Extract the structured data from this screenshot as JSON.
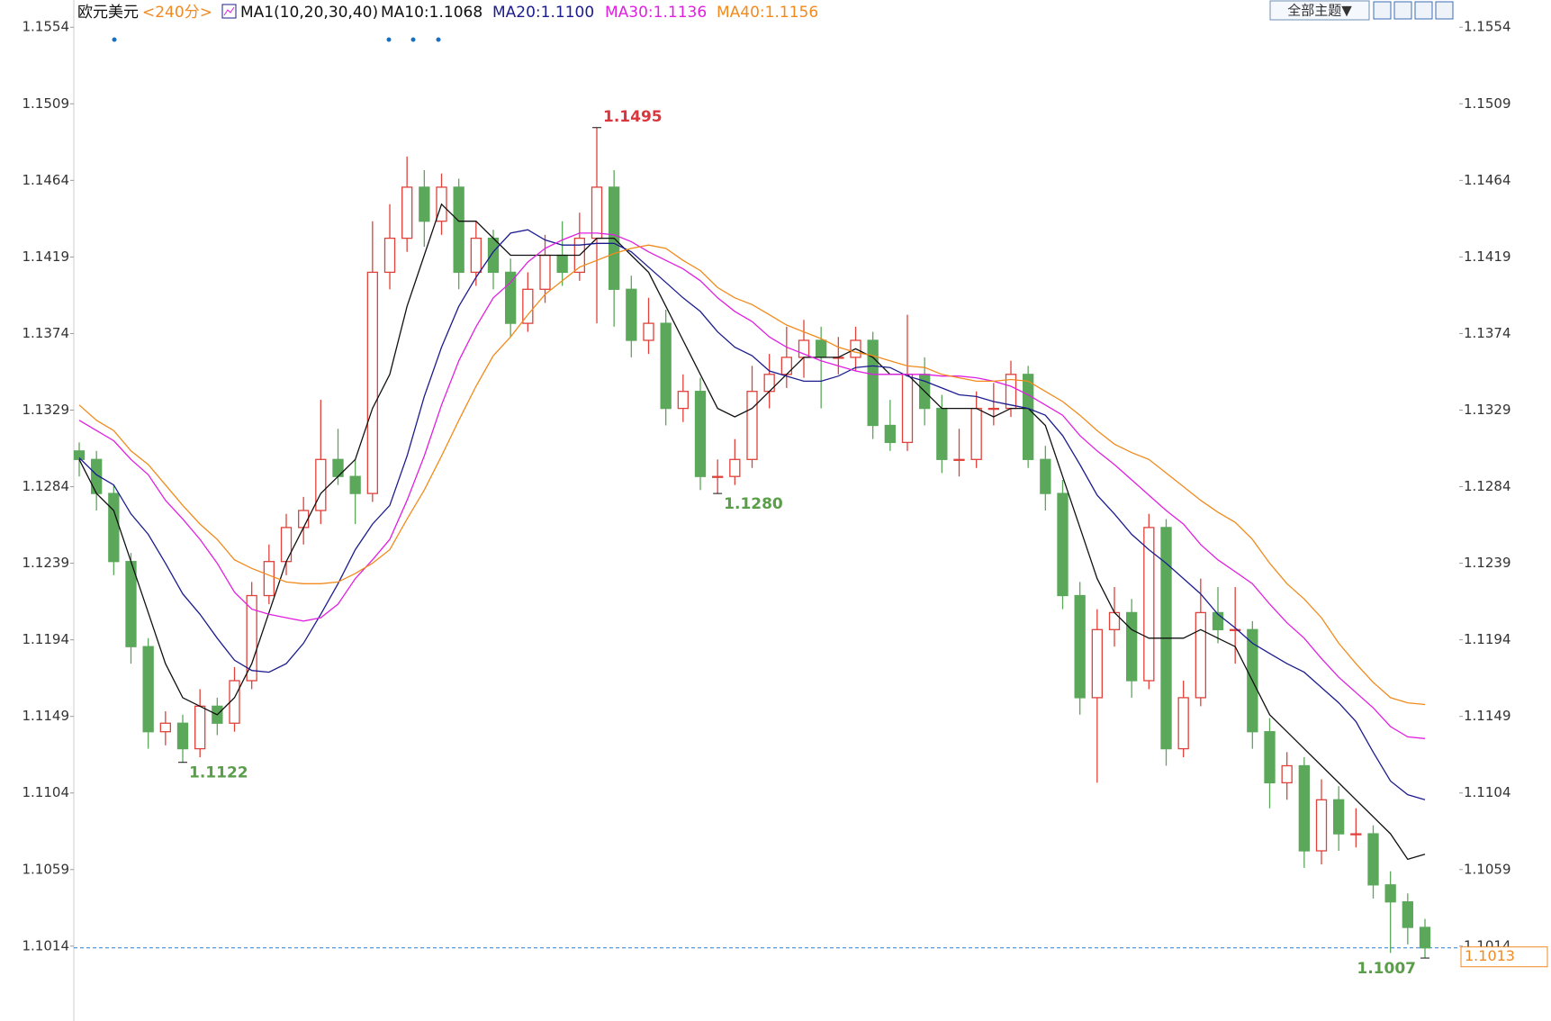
{
  "chart_data": {
    "type": "candlestick",
    "title": "欧元美元",
    "period": "<240分>",
    "indicator": "MA1(10,20,30,40)",
    "up_color": "#e0413a",
    "down_color": "#5ba85a",
    "ylim": [
      1.097,
      1.157
    ],
    "yticks": [
      1.1014,
      1.1059,
      1.1104,
      1.1149,
      1.1194,
      1.1239,
      1.1284,
      1.1329,
      1.1374,
      1.1419,
      1.1464,
      1.1509,
      1.1554
    ],
    "candles": [
      [
        1.1305,
        1.131,
        1.129,
        1.13
      ],
      [
        1.13,
        1.1305,
        1.127,
        1.128
      ],
      [
        1.128,
        1.1285,
        1.1232,
        1.124
      ],
      [
        1.124,
        1.1245,
        1.118,
        1.119
      ],
      [
        1.119,
        1.1195,
        1.113,
        1.114
      ],
      [
        1.114,
        1.1152,
        1.1132,
        1.1145
      ],
      [
        1.1145,
        1.115,
        1.1122,
        1.113
      ],
      [
        1.113,
        1.1165,
        1.1125,
        1.1155
      ],
      [
        1.1155,
        1.116,
        1.1138,
        1.1145
      ],
      [
        1.1145,
        1.1178,
        1.114,
        1.117
      ],
      [
        1.117,
        1.1228,
        1.1165,
        1.122
      ],
      [
        1.122,
        1.125,
        1.1215,
        1.124
      ],
      [
        1.124,
        1.1268,
        1.1232,
        1.126
      ],
      [
        1.126,
        1.1278,
        1.125,
        1.127
      ],
      [
        1.127,
        1.1335,
        1.1262,
        1.13
      ],
      [
        1.13,
        1.1318,
        1.1285,
        1.129
      ],
      [
        1.129,
        1.13,
        1.1262,
        1.128
      ],
      [
        1.128,
        1.144,
        1.1275,
        1.141
      ],
      [
        1.141,
        1.145,
        1.14,
        1.143
      ],
      [
        1.143,
        1.1478,
        1.1422,
        1.146
      ],
      [
        1.146,
        1.147,
        1.1425,
        1.144
      ],
      [
        1.144,
        1.1468,
        1.1432,
        1.146
      ],
      [
        1.146,
        1.1465,
        1.14,
        1.141
      ],
      [
        1.141,
        1.144,
        1.1402,
        1.143
      ],
      [
        1.143,
        1.1435,
        1.14,
        1.141
      ],
      [
        1.141,
        1.1418,
        1.1372,
        1.138
      ],
      [
        1.138,
        1.141,
        1.1375,
        1.14
      ],
      [
        1.14,
        1.1432,
        1.1392,
        1.142
      ],
      [
        1.142,
        1.144,
        1.1402,
        1.141
      ],
      [
        1.141,
        1.1445,
        1.1405,
        1.143
      ],
      [
        1.143,
        1.1495,
        1.138,
        1.146
      ],
      [
        1.146,
        1.147,
        1.1378,
        1.14
      ],
      [
        1.14,
        1.1408,
        1.136,
        1.137
      ],
      [
        1.137,
        1.1395,
        1.1362,
        1.138
      ],
      [
        1.138,
        1.1388,
        1.132,
        1.133
      ],
      [
        1.133,
        1.135,
        1.1322,
        1.134
      ],
      [
        1.134,
        1.1348,
        1.1282,
        1.129
      ],
      [
        1.129,
        1.13,
        1.128,
        1.129
      ],
      [
        1.129,
        1.1312,
        1.1285,
        1.13
      ],
      [
        1.13,
        1.1355,
        1.1295,
        1.134
      ],
      [
        1.134,
        1.1362,
        1.133,
        1.135
      ],
      [
        1.135,
        1.1378,
        1.1342,
        1.136
      ],
      [
        1.136,
        1.1382,
        1.1348,
        1.137
      ],
      [
        1.137,
        1.1378,
        1.133,
        1.136
      ],
      [
        1.136,
        1.1372,
        1.135,
        1.136
      ],
      [
        1.136,
        1.1378,
        1.1352,
        1.137
      ],
      [
        1.137,
        1.1375,
        1.1312,
        1.132
      ],
      [
        1.132,
        1.1335,
        1.1305,
        1.131
      ],
      [
        1.131,
        1.1385,
        1.1305,
        1.135
      ],
      [
        1.135,
        1.136,
        1.132,
        1.133
      ],
      [
        1.133,
        1.1338,
        1.1292,
        1.13
      ],
      [
        1.13,
        1.1318,
        1.129,
        1.13
      ],
      [
        1.13,
        1.134,
        1.1295,
        1.133
      ],
      [
        1.133,
        1.1345,
        1.132,
        1.133
      ],
      [
        1.133,
        1.1358,
        1.1325,
        1.135
      ],
      [
        1.135,
        1.1355,
        1.1295,
        1.13
      ],
      [
        1.13,
        1.1308,
        1.127,
        1.128
      ],
      [
        1.128,
        1.1288,
        1.1212,
        1.122
      ],
      [
        1.122,
        1.1228,
        1.115,
        1.116
      ],
      [
        1.116,
        1.1212,
        1.111,
        1.12
      ],
      [
        1.12,
        1.1225,
        1.119,
        1.121
      ],
      [
        1.121,
        1.1218,
        1.116,
        1.117
      ],
      [
        1.117,
        1.1268,
        1.1165,
        1.126
      ],
      [
        1.126,
        1.1265,
        1.112,
        1.113
      ],
      [
        1.113,
        1.117,
        1.1125,
        1.116
      ],
      [
        1.116,
        1.123,
        1.1155,
        1.121
      ],
      [
        1.121,
        1.1225,
        1.1192,
        1.12
      ],
      [
        1.12,
        1.1225,
        1.118,
        1.12
      ],
      [
        1.12,
        1.1205,
        1.113,
        1.114
      ],
      [
        1.114,
        1.1148,
        1.1095,
        1.111
      ],
      [
        1.111,
        1.1128,
        1.11,
        1.112
      ],
      [
        1.112,
        1.1125,
        1.106,
        1.107
      ],
      [
        1.107,
        1.1112,
        1.1062,
        1.11
      ],
      [
        1.11,
        1.1108,
        1.107,
        1.108
      ],
      [
        1.108,
        1.1095,
        1.1072,
        1.108
      ],
      [
        1.108,
        1.1085,
        1.1042,
        1.105
      ],
      [
        1.105,
        1.1058,
        1.101,
        1.104
      ],
      [
        1.104,
        1.1045,
        1.1015,
        1.1025
      ],
      [
        1.1025,
        1.103,
        1.1007,
        1.1013
      ]
    ],
    "series": [
      {
        "name": "MA10:1.1068",
        "color": "#111111",
        "values": [
          1.13,
          1.128,
          1.127,
          1.124,
          1.121,
          1.118,
          1.116,
          1.1155,
          1.115,
          1.116,
          1.118,
          1.121,
          1.124,
          1.126,
          1.128,
          1.129,
          1.13,
          1.133,
          1.135,
          1.139,
          1.142,
          1.145,
          1.144,
          1.144,
          1.143,
          1.142,
          1.142,
          1.142,
          1.142,
          1.142,
          1.143,
          1.143,
          1.142,
          1.141,
          1.139,
          1.137,
          1.135,
          1.133,
          1.1325,
          1.133,
          1.134,
          1.135,
          1.136,
          1.136,
          1.136,
          1.1365,
          1.136,
          1.135,
          1.135,
          1.134,
          1.133,
          1.133,
          1.133,
          1.1325,
          1.133,
          1.133,
          1.132,
          1.129,
          1.126,
          1.123,
          1.121,
          1.12,
          1.1195,
          1.1195,
          1.1195,
          1.12,
          1.1195,
          1.119,
          1.117,
          1.115,
          1.114,
          1.113,
          1.112,
          1.111,
          1.11,
          1.109,
          1.108,
          1.1065,
          1.1068
        ]
      },
      {
        "name": "MA20:1.1100",
        "color": "#1c1c8f",
        "values": [
          1.1301,
          1.1291,
          1.1285,
          1.1268,
          1.1256,
          1.1239,
          1.1221,
          1.1209,
          1.1195,
          1.1182,
          1.1176,
          1.1175,
          1.118,
          1.1192,
          1.1209,
          1.1227,
          1.1247,
          1.1262,
          1.1273,
          1.1302,
          1.1337,
          1.1366,
          1.139,
          1.1407,
          1.1422,
          1.1433,
          1.1435,
          1.1429,
          1.1426,
          1.1426,
          1.1427,
          1.1427,
          1.1422,
          1.1413,
          1.1404,
          1.1395,
          1.1387,
          1.1375,
          1.1366,
          1.1361,
          1.1352,
          1.1349,
          1.1346,
          1.1346,
          1.1349,
          1.1354,
          1.1355,
          1.1354,
          1.1349,
          1.1346,
          1.1342,
          1.1338,
          1.1337,
          1.1334,
          1.1332,
          1.133,
          1.1326,
          1.1314,
          1.1297,
          1.1279,
          1.1268,
          1.1256,
          1.1247,
          1.1239,
          1.123,
          1.1221,
          1.1209,
          1.1201,
          1.1192,
          1.1186,
          1.118,
          1.1175,
          1.1166,
          1.1157,
          1.1146,
          1.1128,
          1.1111,
          1.1103,
          1.11
        ]
      },
      {
        "name": "MA30:1.1136",
        "color": "#e020e0",
        "values": [
          1.1323,
          1.1317,
          1.1311,
          1.13,
          1.1291,
          1.1276,
          1.1265,
          1.1253,
          1.1239,
          1.1222,
          1.1212,
          1.1209,
          1.1207,
          1.1205,
          1.1207,
          1.1215,
          1.123,
          1.1241,
          1.1253,
          1.1276,
          1.1302,
          1.1332,
          1.1358,
          1.1378,
          1.1395,
          1.1404,
          1.1416,
          1.1424,
          1.1429,
          1.1433,
          1.1433,
          1.1432,
          1.1428,
          1.1422,
          1.1417,
          1.1412,
          1.1405,
          1.1395,
          1.1387,
          1.1381,
          1.1372,
          1.1366,
          1.1362,
          1.1358,
          1.1355,
          1.1352,
          1.135,
          1.135,
          1.135,
          1.135,
          1.1349,
          1.1349,
          1.1348,
          1.1346,
          1.1343,
          1.1338,
          1.1332,
          1.1326,
          1.1314,
          1.1305,
          1.1297,
          1.1288,
          1.1279,
          1.127,
          1.1262,
          1.125,
          1.1241,
          1.1234,
          1.1227,
          1.1215,
          1.1204,
          1.1195,
          1.1183,
          1.1172,
          1.1163,
          1.1154,
          1.1143,
          1.1137,
          1.1136
        ]
      },
      {
        "name": "MA40:1.1156",
        "color": "#f28a1c",
        "values": [
          1.1332,
          1.1323,
          1.1317,
          1.1305,
          1.1297,
          1.1285,
          1.1273,
          1.1262,
          1.1253,
          1.1241,
          1.1236,
          1.1232,
          1.1228,
          1.1227,
          1.1227,
          1.1228,
          1.1233,
          1.1239,
          1.1247,
          1.1265,
          1.1282,
          1.1302,
          1.1323,
          1.1343,
          1.1361,
          1.1372,
          1.1385,
          1.1397,
          1.1405,
          1.1413,
          1.1417,
          1.1421,
          1.1424,
          1.1426,
          1.1424,
          1.1417,
          1.1411,
          1.1401,
          1.1395,
          1.1391,
          1.1385,
          1.1379,
          1.1375,
          1.1371,
          1.1366,
          1.1363,
          1.1361,
          1.1358,
          1.1355,
          1.1354,
          1.135,
          1.1348,
          1.1346,
          1.1346,
          1.1347,
          1.1346,
          1.134,
          1.1334,
          1.1326,
          1.1317,
          1.1309,
          1.1304,
          1.13,
          1.1292,
          1.1284,
          1.1276,
          1.1269,
          1.1263,
          1.1253,
          1.1239,
          1.1227,
          1.1218,
          1.1207,
          1.1192,
          1.118,
          1.1169,
          1.116,
          1.1157,
          1.1156
        ]
      }
    ],
    "high_labels": [
      {
        "value": 1.1495,
        "label": "1.1495"
      }
    ],
    "low_labels": [
      {
        "value": 1.128,
        "label": "1.1280"
      },
      {
        "value": 1.1122,
        "label": "1.1122"
      },
      {
        "value": 1.1007,
        "label": "1.1007"
      }
    ],
    "last_price": {
      "value": 1.1013,
      "label": "1.1013"
    }
  },
  "toolbar": {
    "button": "全部主题▼"
  }
}
